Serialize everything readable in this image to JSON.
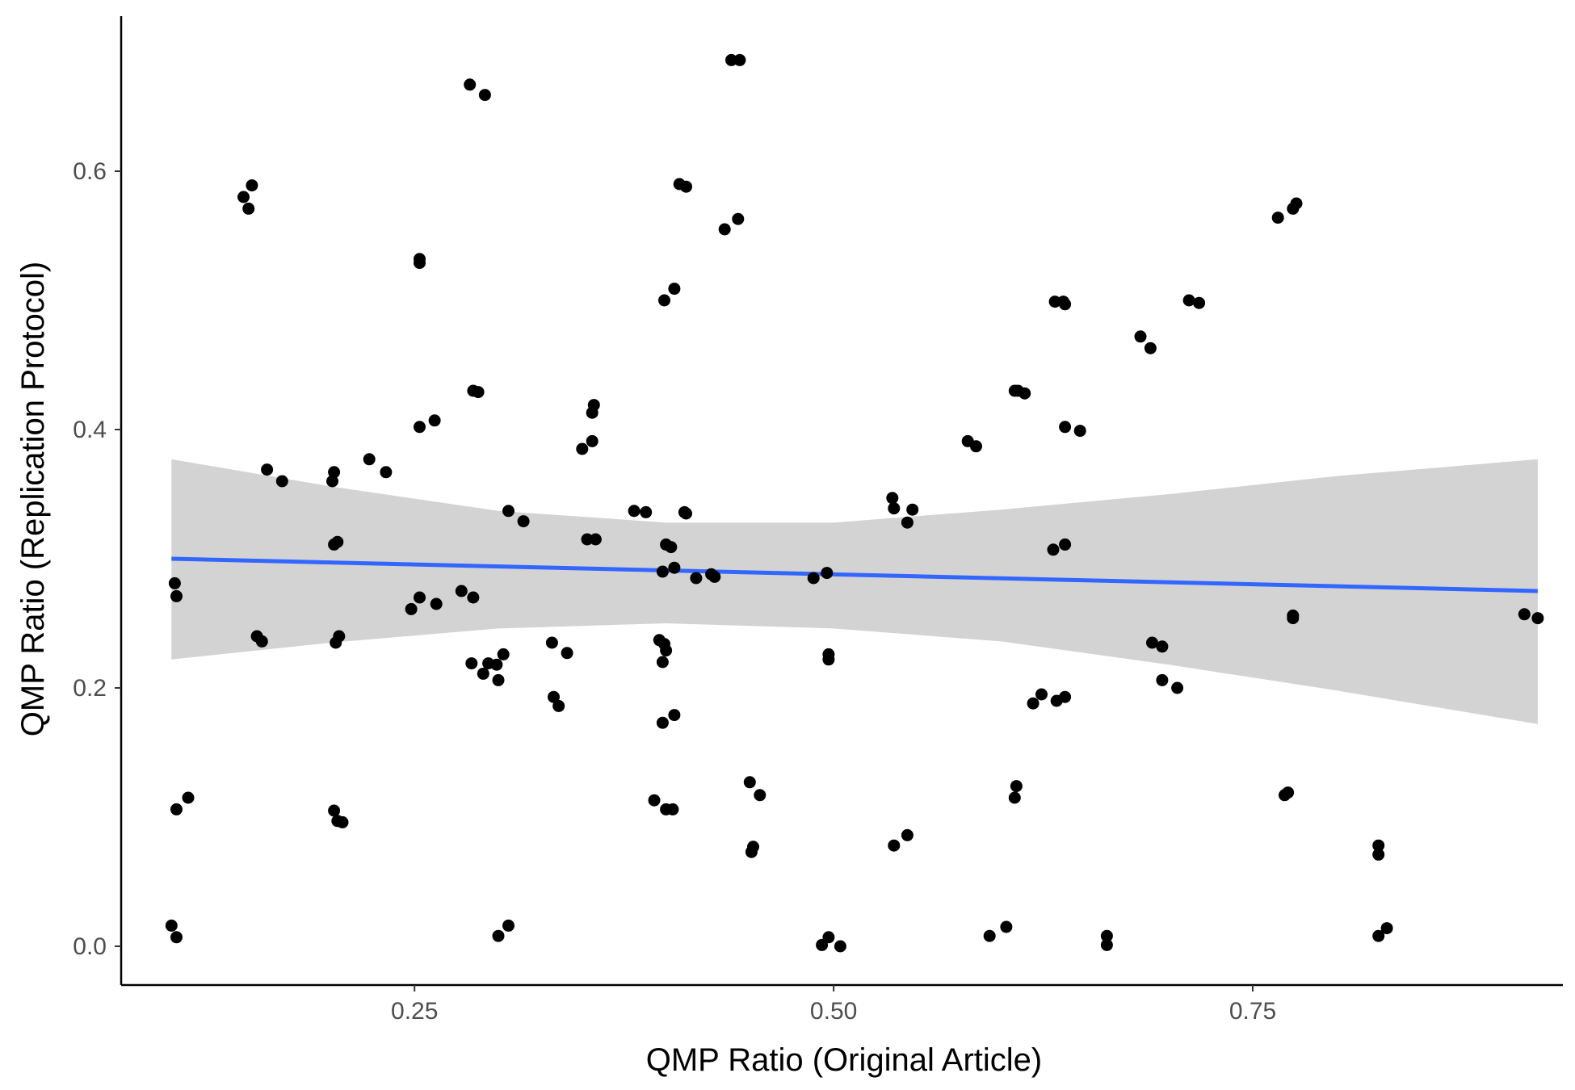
{
  "chart_data": {
    "type": "scatter",
    "xlabel": "QMP Ratio (Original Article)",
    "ylabel": "QMP Ratio (Replication Protocol)",
    "xlim": [
      0.075,
      0.935
    ],
    "ylim": [
      -0.03,
      0.72
    ],
    "x_ticks": [
      {
        "value": 0.25,
        "label": "0.25"
      },
      {
        "value": 0.5,
        "label": "0.50"
      },
      {
        "value": 0.75,
        "label": "0.75"
      }
    ],
    "y_ticks": [
      {
        "value": 0.0,
        "label": "0.0"
      },
      {
        "value": 0.2,
        "label": "0.2"
      },
      {
        "value": 0.4,
        "label": "0.4"
      },
      {
        "value": 0.6,
        "label": "0.6"
      }
    ],
    "grid": false,
    "colors": {
      "points": "#000000",
      "trend_line": "#3366ff",
      "confidence_band": "#d3d3d3",
      "axis": "#000000"
    },
    "points": [
      [
        0.107,
        0.281
      ],
      [
        0.108,
        0.271
      ],
      [
        0.108,
        0.106
      ],
      [
        0.115,
        0.115
      ],
      [
        0.105,
        0.016
      ],
      [
        0.108,
        0.007
      ],
      [
        0.148,
        0.58
      ],
      [
        0.151,
        0.571
      ],
      [
        0.153,
        0.589
      ],
      [
        0.156,
        0.24
      ],
      [
        0.159,
        0.236
      ],
      [
        0.162,
        0.369
      ],
      [
        0.171,
        0.36
      ],
      [
        0.202,
        0.367
      ],
      [
        0.201,
        0.36
      ],
      [
        0.202,
        0.311
      ],
      [
        0.204,
        0.313
      ],
      [
        0.203,
        0.235
      ],
      [
        0.205,
        0.24
      ],
      [
        0.202,
        0.105
      ],
      [
        0.204,
        0.097
      ],
      [
        0.207,
        0.096
      ],
      [
        0.223,
        0.377
      ],
      [
        0.233,
        0.367
      ],
      [
        0.248,
        0.261
      ],
      [
        0.253,
        0.27
      ],
      [
        0.263,
        0.265
      ],
      [
        0.253,
        0.532
      ],
      [
        0.253,
        0.529
      ],
      [
        0.253,
        0.402
      ],
      [
        0.262,
        0.407
      ],
      [
        0.278,
        0.275
      ],
      [
        0.285,
        0.27
      ],
      [
        0.284,
        0.219
      ],
      [
        0.283,
        0.667
      ],
      [
        0.292,
        0.659
      ],
      [
        0.285,
        0.43
      ],
      [
        0.288,
        0.429
      ],
      [
        0.291,
        0.211
      ],
      [
        0.294,
        0.219
      ],
      [
        0.299,
        0.218
      ],
      [
        0.3,
        0.206
      ],
      [
        0.303,
        0.226
      ],
      [
        0.3,
        0.008
      ],
      [
        0.306,
        0.016
      ],
      [
        0.306,
        0.337
      ],
      [
        0.315,
        0.329
      ],
      [
        0.332,
        0.235
      ],
      [
        0.341,
        0.227
      ],
      [
        0.333,
        0.193
      ],
      [
        0.336,
        0.186
      ],
      [
        0.35,
        0.385
      ],
      [
        0.356,
        0.391
      ],
      [
        0.356,
        0.413
      ],
      [
        0.357,
        0.419
      ],
      [
        0.353,
        0.315
      ],
      [
        0.358,
        0.315
      ],
      [
        0.381,
        0.337
      ],
      [
        0.388,
        0.336
      ],
      [
        0.393,
        0.113
      ],
      [
        0.396,
        0.237
      ],
      [
        0.399,
        0.234
      ],
      [
        0.398,
        0.22
      ],
      [
        0.4,
        0.229
      ],
      [
        0.398,
        0.173
      ],
      [
        0.405,
        0.179
      ],
      [
        0.399,
        0.5
      ],
      [
        0.405,
        0.509
      ],
      [
        0.398,
        0.29
      ],
      [
        0.4,
        0.311
      ],
      [
        0.403,
        0.309
      ],
      [
        0.405,
        0.293
      ],
      [
        0.408,
        0.59
      ],
      [
        0.412,
        0.588
      ],
      [
        0.411,
        0.336
      ],
      [
        0.412,
        0.335
      ],
      [
        0.4,
        0.106
      ],
      [
        0.404,
        0.106
      ],
      [
        0.418,
        0.285
      ],
      [
        0.427,
        0.288
      ],
      [
        0.429,
        0.286
      ],
      [
        0.435,
        0.555
      ],
      [
        0.443,
        0.563
      ],
      [
        0.439,
        0.686
      ],
      [
        0.444,
        0.686
      ],
      [
        0.45,
        0.127
      ],
      [
        0.456,
        0.117
      ],
      [
        0.451,
        0.073
      ],
      [
        0.452,
        0.077
      ],
      [
        0.488,
        0.285
      ],
      [
        0.496,
        0.289
      ],
      [
        0.493,
        0.001
      ],
      [
        0.497,
        0.007
      ],
      [
        0.504,
        0.0
      ],
      [
        0.497,
        0.226
      ],
      [
        0.497,
        0.222
      ],
      [
        0.535,
        0.347
      ],
      [
        0.536,
        0.339
      ],
      [
        0.544,
        0.328
      ],
      [
        0.547,
        0.338
      ],
      [
        0.536,
        0.078
      ],
      [
        0.544,
        0.086
      ],
      [
        0.58,
        0.391
      ],
      [
        0.585,
        0.387
      ],
      [
        0.593,
        0.008
      ],
      [
        0.603,
        0.015
      ],
      [
        0.608,
        0.43
      ],
      [
        0.61,
        0.43
      ],
      [
        0.614,
        0.428
      ],
      [
        0.609,
        0.124
      ],
      [
        0.608,
        0.115
      ],
      [
        0.619,
        0.188
      ],
      [
        0.624,
        0.195
      ],
      [
        0.632,
        0.499
      ],
      [
        0.637,
        0.499
      ],
      [
        0.638,
        0.497
      ],
      [
        0.631,
        0.307
      ],
      [
        0.638,
        0.311
      ],
      [
        0.633,
        0.19
      ],
      [
        0.638,
        0.193
      ],
      [
        0.638,
        0.402
      ],
      [
        0.647,
        0.399
      ],
      [
        0.663,
        0.008
      ],
      [
        0.663,
        0.001
      ],
      [
        0.683,
        0.472
      ],
      [
        0.689,
        0.463
      ],
      [
        0.69,
        0.235
      ],
      [
        0.696,
        0.232
      ],
      [
        0.696,
        0.206
      ],
      [
        0.705,
        0.2
      ],
      [
        0.712,
        0.5
      ],
      [
        0.718,
        0.498
      ],
      [
        0.765,
        0.564
      ],
      [
        0.774,
        0.571
      ],
      [
        0.776,
        0.575
      ],
      [
        0.774,
        0.256
      ],
      [
        0.774,
        0.254
      ],
      [
        0.769,
        0.117
      ],
      [
        0.771,
        0.119
      ],
      [
        0.825,
        0.078
      ],
      [
        0.825,
        0.071
      ],
      [
        0.825,
        0.008
      ],
      [
        0.83,
        0.014
      ],
      [
        0.912,
        0.257
      ],
      [
        0.92,
        0.254
      ]
    ],
    "trend_line": {
      "x": [
        0.105,
        0.92
      ],
      "y": [
        0.3,
        0.275
      ]
    },
    "confidence_band": {
      "x": [
        0.105,
        0.2,
        0.3,
        0.4,
        0.5,
        0.6,
        0.7,
        0.8,
        0.92
      ],
      "upper": [
        0.377,
        0.356,
        0.337,
        0.328,
        0.328,
        0.338,
        0.35,
        0.364,
        0.377
      ],
      "lower": [
        0.222,
        0.235,
        0.246,
        0.25,
        0.246,
        0.236,
        0.218,
        0.198,
        0.172
      ]
    }
  }
}
